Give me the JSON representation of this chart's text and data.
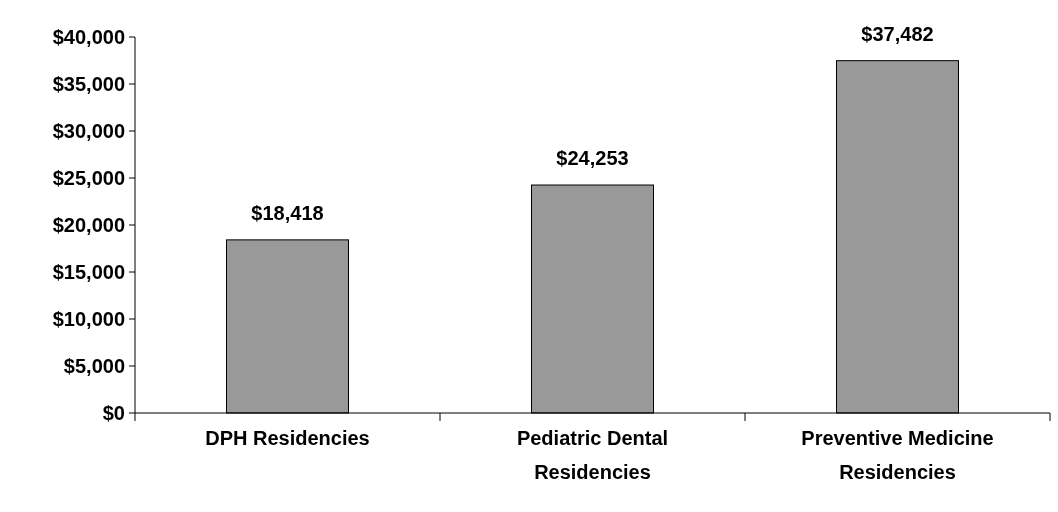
{
  "chart_data": {
    "type": "bar",
    "categories": [
      "DPH Residencies",
      "Pediatric Dental Residencies",
      "Preventive Medicine Residencies"
    ],
    "values": [
      18418,
      24253,
      37482
    ],
    "value_labels": [
      "$18,418",
      "$24,253",
      "$37,482"
    ],
    "color": "#999999",
    "ylim": [
      0,
      40000
    ],
    "yticks": [
      {
        "value": 0,
        "label": "$0"
      },
      {
        "value": 5000,
        "label": "$5,000"
      },
      {
        "value": 10000,
        "label": "$10,000"
      },
      {
        "value": 15000,
        "label": "$15,000"
      },
      {
        "value": 20000,
        "label": "$20,000"
      },
      {
        "value": 25000,
        "label": "$25,000"
      },
      {
        "value": 30000,
        "label": "$30,000"
      },
      {
        "value": 35000,
        "label": "$35,000"
      },
      {
        "value": 40000,
        "label": "$40,000"
      }
    ]
  }
}
